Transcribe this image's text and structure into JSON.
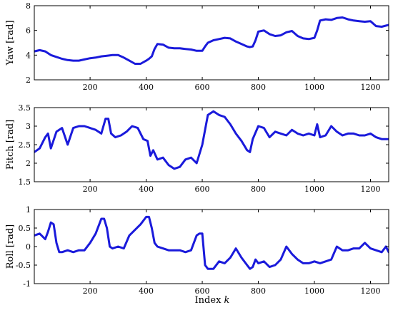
{
  "xlabel_prefix": "Index ",
  "xlabel_var": "k",
  "colors": {
    "line": "#1a1adb",
    "axes": "#000000"
  },
  "chart_data": [
    {
      "type": "line",
      "ylabel": "Yaw [rad]",
      "xlim": [
        1,
        1265
      ],
      "ylim": [
        2,
        8
      ],
      "xticks": [
        200,
        400,
        600,
        800,
        1000,
        1200
      ],
      "yticks": [
        2,
        4,
        6,
        8
      ],
      "grid": false,
      "x": [
        1,
        20,
        40,
        60,
        80,
        100,
        120,
        140,
        160,
        180,
        200,
        220,
        240,
        260,
        280,
        300,
        320,
        340,
        360,
        380,
        400,
        410,
        420,
        430,
        440,
        460,
        480,
        500,
        520,
        540,
        560,
        580,
        600,
        610,
        620,
        640,
        660,
        680,
        700,
        720,
        740,
        760,
        770,
        780,
        790,
        800,
        820,
        840,
        860,
        880,
        900,
        920,
        940,
        960,
        980,
        1000,
        1010,
        1020,
        1040,
        1060,
        1080,
        1100,
        1120,
        1140,
        1160,
        1180,
        1200,
        1220,
        1240,
        1265
      ],
      "series": [
        {
          "values": [
            4.3,
            4.4,
            4.3,
            4.0,
            3.85,
            3.7,
            3.6,
            3.55,
            3.55,
            3.65,
            3.75,
            3.8,
            3.9,
            3.95,
            4.0,
            4.0,
            3.8,
            3.55,
            3.3,
            3.3,
            3.55,
            3.7,
            3.9,
            4.5,
            4.9,
            4.85,
            4.6,
            4.55,
            4.55,
            4.5,
            4.45,
            4.35,
            4.35,
            4.7,
            5.0,
            5.2,
            5.3,
            5.4,
            5.35,
            5.1,
            4.9,
            4.7,
            4.65,
            4.7,
            5.2,
            5.9,
            6.0,
            5.7,
            5.55,
            5.6,
            5.85,
            5.95,
            5.55,
            5.35,
            5.3,
            5.4,
            6.0,
            6.8,
            6.9,
            6.85,
            7.0,
            7.05,
            6.9,
            6.8,
            6.75,
            6.7,
            6.75,
            6.35,
            6.3,
            6.45
          ]
        }
      ]
    },
    {
      "type": "line",
      "ylabel": "Pitch [rad]",
      "xlim": [
        1,
        1265
      ],
      "ylim": [
        1.5,
        3.5
      ],
      "xticks": [
        200,
        400,
        600,
        800,
        1000,
        1200
      ],
      "yticks": [
        1.5,
        2,
        2.5,
        3,
        3.5
      ],
      "grid": false,
      "x": [
        1,
        20,
        40,
        50,
        60,
        80,
        100,
        120,
        140,
        160,
        180,
        200,
        220,
        240,
        255,
        265,
        275,
        290,
        310,
        330,
        350,
        370,
        390,
        405,
        415,
        425,
        440,
        460,
        480,
        500,
        520,
        540,
        560,
        580,
        600,
        620,
        640,
        660,
        680,
        700,
        720,
        740,
        760,
        770,
        780,
        800,
        820,
        840,
        860,
        880,
        900,
        920,
        940,
        960,
        980,
        1000,
        1010,
        1020,
        1040,
        1060,
        1080,
        1100,
        1120,
        1140,
        1160,
        1180,
        1200,
        1220,
        1240,
        1265
      ],
      "series": [
        {
          "values": [
            2.3,
            2.4,
            2.7,
            2.8,
            2.4,
            2.85,
            2.95,
            2.5,
            2.95,
            3.0,
            3.0,
            2.95,
            2.9,
            2.8,
            3.2,
            3.2,
            2.8,
            2.7,
            2.75,
            2.85,
            3.0,
            2.95,
            2.65,
            2.6,
            2.2,
            2.35,
            2.1,
            2.15,
            1.95,
            1.85,
            1.9,
            2.1,
            2.15,
            2.0,
            2.5,
            3.3,
            3.4,
            3.3,
            3.25,
            3.05,
            2.8,
            2.6,
            2.35,
            2.3,
            2.65,
            3.0,
            2.95,
            2.7,
            2.85,
            2.8,
            2.75,
            2.9,
            2.8,
            2.75,
            2.8,
            2.75,
            3.05,
            2.7,
            2.75,
            3.0,
            2.85,
            2.75,
            2.8,
            2.8,
            2.75,
            2.75,
            2.8,
            2.7,
            2.65,
            2.65
          ]
        }
      ]
    },
    {
      "type": "line",
      "ylabel": "Roll [rad]",
      "xlim": [
        1,
        1265
      ],
      "ylim": [
        -1,
        1
      ],
      "xticks": [
        200,
        400,
        600,
        800,
        1000,
        1200
      ],
      "yticks": [
        -1,
        -0.5,
        0,
        0.5,
        1
      ],
      "grid": false,
      "x": [
        1,
        20,
        40,
        50,
        60,
        70,
        80,
        90,
        100,
        120,
        140,
        160,
        180,
        200,
        220,
        240,
        250,
        260,
        270,
        280,
        300,
        320,
        340,
        360,
        380,
        400,
        410,
        420,
        430,
        440,
        460,
        480,
        500,
        520,
        540,
        560,
        580,
        590,
        600,
        610,
        620,
        640,
        660,
        680,
        700,
        720,
        740,
        760,
        770,
        780,
        790,
        800,
        820,
        840,
        860,
        880,
        900,
        920,
        940,
        960,
        980,
        1000,
        1020,
        1040,
        1060,
        1080,
        1100,
        1120,
        1140,
        1160,
        1180,
        1200,
        1220,
        1240,
        1255,
        1265
      ],
      "series": [
        {
          "values": [
            0.3,
            0.35,
            0.2,
            0.4,
            0.65,
            0.6,
            0.1,
            -0.15,
            -0.15,
            -0.1,
            -0.15,
            -0.1,
            -0.1,
            0.1,
            0.35,
            0.75,
            0.75,
            0.5,
            0.0,
            -0.05,
            0.0,
            -0.05,
            0.3,
            0.45,
            0.6,
            0.8,
            0.8,
            0.5,
            0.1,
            0.0,
            -0.05,
            -0.1,
            -0.1,
            -0.1,
            -0.15,
            -0.1,
            0.3,
            0.35,
            0.35,
            -0.5,
            -0.6,
            -0.6,
            -0.4,
            -0.45,
            -0.3,
            -0.05,
            -0.3,
            -0.5,
            -0.6,
            -0.55,
            -0.35,
            -0.45,
            -0.4,
            -0.55,
            -0.5,
            -0.35,
            0.0,
            -0.2,
            -0.35,
            -0.45,
            -0.45,
            -0.4,
            -0.45,
            -0.4,
            -0.35,
            0.0,
            -0.1,
            -0.1,
            -0.05,
            -0.05,
            0.1,
            -0.05,
            -0.1,
            -0.15,
            0.0,
            -0.15
          ]
        }
      ]
    }
  ]
}
